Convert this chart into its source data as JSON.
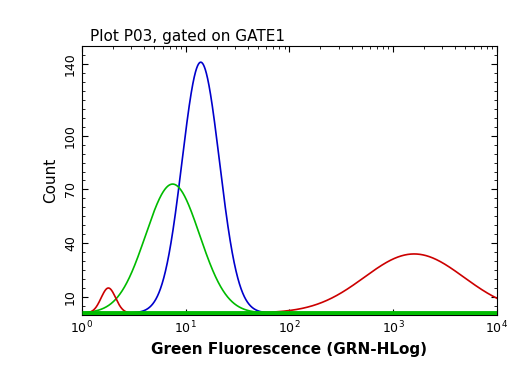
{
  "title": "Plot P03, gated on GATE1",
  "xlabel": "Green Fluorescence (GRN-HLog)",
  "ylabel": "Count",
  "xlim": [
    1,
    10000
  ],
  "ylim": [
    0,
    150
  ],
  "yticks": [
    10,
    40,
    70,
    100,
    140
  ],
  "blue_peak_x": 14,
  "blue_peak_y": 140,
  "blue_sigma": 0.18,
  "green_peak_x": 7.5,
  "green_peak_y": 72,
  "green_sigma": 0.26,
  "red_peak_x": 1600,
  "red_peak_y": 33,
  "red_sigma": 0.48,
  "red_spike_x": 1.8,
  "red_spike_y": 14,
  "red_spike_sigma": 0.07,
  "baseline": 1,
  "blue_color": "#0000cc",
  "green_color": "#00bb00",
  "red_color": "#cc0000",
  "bg_color": "#ffffff",
  "title_color": "#000000",
  "xlabel_color": "#000000",
  "ylabel_color": "#000000",
  "title_fontsize": 11,
  "label_fontsize": 11,
  "tick_fontsize": 9,
  "linewidth": 1.2
}
